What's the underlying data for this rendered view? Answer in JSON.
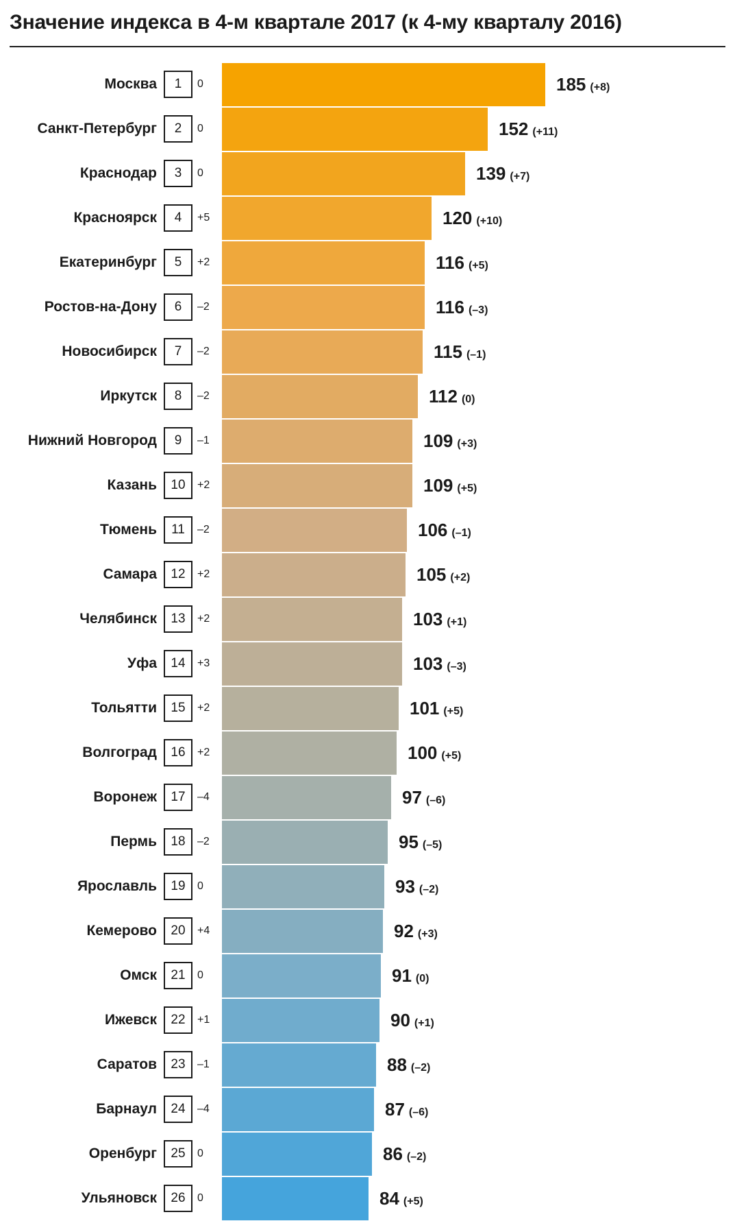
{
  "chart_data": {
    "type": "bar",
    "orientation": "horizontal",
    "title": "Значение индекса в 4-м квартале 2017 (к 4-му кварталу 2016)",
    "xlim": [
      0,
      185
    ],
    "grid": false,
    "legend": false,
    "bar_gradient_stops": [
      "#F6A300",
      "#EDA94B",
      "#D2AE85",
      "#AFB0A3",
      "#7BAEC9",
      "#45A4DC"
    ],
    "rows": [
      {
        "city": "Москва",
        "rank": 1,
        "rank_change": "0",
        "value": 185,
        "value_change": "(+8)"
      },
      {
        "city": "Санкт-Петербург",
        "rank": 2,
        "rank_change": "0",
        "value": 152,
        "value_change": "(+11)"
      },
      {
        "city": "Краснодар",
        "rank": 3,
        "rank_change": "0",
        "value": 139,
        "value_change": "(+7)"
      },
      {
        "city": "Красноярск",
        "rank": 4,
        "rank_change": "+5",
        "value": 120,
        "value_change": "(+10)"
      },
      {
        "city": "Екатеринбург",
        "rank": 5,
        "rank_change": "+2",
        "value": 116,
        "value_change": "(+5)"
      },
      {
        "city": "Ростов-на-Дону",
        "rank": 6,
        "rank_change": "–2",
        "value": 116,
        "value_change": "(–3)"
      },
      {
        "city": "Новосибирск",
        "rank": 7,
        "rank_change": "–2",
        "value": 115,
        "value_change": "(–1)"
      },
      {
        "city": "Иркутск",
        "rank": 8,
        "rank_change": "–2",
        "value": 112,
        "value_change": "(0)"
      },
      {
        "city": "Нижний Новгород",
        "rank": 9,
        "rank_change": "–1",
        "value": 109,
        "value_change": "(+3)"
      },
      {
        "city": "Казань",
        "rank": 10,
        "rank_change": "+2",
        "value": 109,
        "value_change": "(+5)"
      },
      {
        "city": "Тюмень",
        "rank": 11,
        "rank_change": "–2",
        "value": 106,
        "value_change": "(–1)"
      },
      {
        "city": "Самара",
        "rank": 12,
        "rank_change": "+2",
        "value": 105,
        "value_change": "(+2)"
      },
      {
        "city": "Челябинск",
        "rank": 13,
        "rank_change": "+2",
        "value": 103,
        "value_change": "(+1)"
      },
      {
        "city": "Уфа",
        "rank": 14,
        "rank_change": "+3",
        "value": 103,
        "value_change": "(–3)"
      },
      {
        "city": "Тольятти",
        "rank": 15,
        "rank_change": "+2",
        "value": 101,
        "value_change": "(+5)"
      },
      {
        "city": "Волгоград",
        "rank": 16,
        "rank_change": "+2",
        "value": 100,
        "value_change": "(+5)"
      },
      {
        "city": "Воронеж",
        "rank": 17,
        "rank_change": "–4",
        "value": 97,
        "value_change": "(–6)"
      },
      {
        "city": "Пермь",
        "rank": 18,
        "rank_change": "–2",
        "value": 95,
        "value_change": "(–5)"
      },
      {
        "city": "Ярославль",
        "rank": 19,
        "rank_change": "0",
        "value": 93,
        "value_change": "(–2)"
      },
      {
        "city": "Кемерово",
        "rank": 20,
        "rank_change": "+4",
        "value": 92,
        "value_change": "(+3)"
      },
      {
        "city": "Омск",
        "rank": 21,
        "rank_change": "0",
        "value": 91,
        "value_change": "(0)"
      },
      {
        "city": "Ижевск",
        "rank": 22,
        "rank_change": "+1",
        "value": 90,
        "value_change": "(+1)"
      },
      {
        "city": "Саратов",
        "rank": 23,
        "rank_change": "–1",
        "value": 88,
        "value_change": "(–2)"
      },
      {
        "city": "Барнаул",
        "rank": 24,
        "rank_change": "–4",
        "value": 87,
        "value_change": "(–6)"
      },
      {
        "city": "Оренбург",
        "rank": 25,
        "rank_change": "0",
        "value": 86,
        "value_change": "(–2)"
      },
      {
        "city": "Ульяновск",
        "rank": 26,
        "rank_change": "0",
        "value": 84,
        "value_change": "(+5)"
      }
    ]
  }
}
